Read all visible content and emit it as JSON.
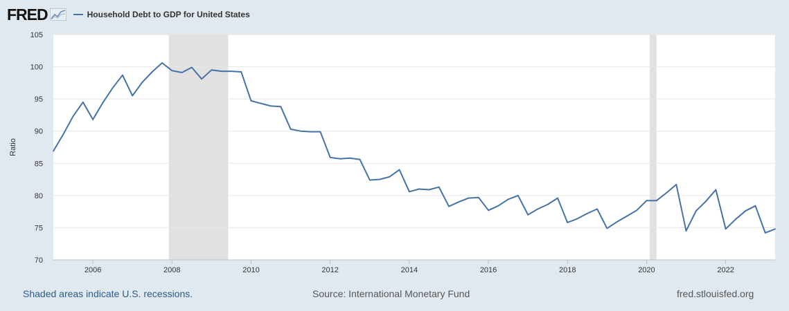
{
  "header": {
    "logo_text": "FRED",
    "logo_icon": "chart-line-icon",
    "legend_label": "Household Debt to GDP for United States",
    "series_color": "#4572a7"
  },
  "footer": {
    "recession_note": "Shaded areas indicate U.S. recessions.",
    "source": "Source: International Monetary Fund",
    "site": "fred.stlouisfed.org"
  },
  "chart_data": {
    "type": "line",
    "title": "",
    "xlabel": "",
    "ylabel": "Ratio",
    "xlim": [
      2005.0,
      2023.25
    ],
    "ylim": [
      70,
      105
    ],
    "y_ticks": [
      70,
      75,
      80,
      85,
      90,
      95,
      100,
      105
    ],
    "x_ticks": [
      2006,
      2008,
      2010,
      2012,
      2014,
      2016,
      2018,
      2020,
      2022
    ],
    "grid": "horizontal",
    "recessions": [
      [
        2007.92,
        2009.42
      ],
      [
        2020.08,
        2020.25
      ]
    ],
    "series": [
      {
        "name": "Household Debt to GDP for United States",
        "color": "#4572a7",
        "x": [
          2005.0,
          2005.25,
          2005.5,
          2005.75,
          2006.0,
          2006.25,
          2006.5,
          2006.75,
          2007.0,
          2007.25,
          2007.5,
          2007.75,
          2008.0,
          2008.25,
          2008.5,
          2008.75,
          2009.0,
          2009.25,
          2009.5,
          2009.75,
          2010.0,
          2010.25,
          2010.5,
          2010.75,
          2011.0,
          2011.25,
          2011.5,
          2011.75,
          2012.0,
          2012.25,
          2012.5,
          2012.75,
          2013.0,
          2013.25,
          2013.5,
          2013.75,
          2014.0,
          2014.25,
          2014.5,
          2014.75,
          2015.0,
          2015.25,
          2015.5,
          2015.75,
          2016.0,
          2016.25,
          2016.5,
          2016.75,
          2017.0,
          2017.25,
          2017.5,
          2017.75,
          2018.0,
          2018.25,
          2018.5,
          2018.75,
          2019.0,
          2019.25,
          2019.5,
          2019.75,
          2020.0,
          2020.25,
          2020.5,
          2020.75,
          2021.0,
          2021.25,
          2021.5,
          2021.75,
          2022.0,
          2022.25,
          2022.5,
          2022.75,
          2023.0,
          2023.25
        ],
        "values": [
          86.9,
          89.5,
          92.3,
          94.5,
          91.8,
          94.4,
          96.7,
          98.7,
          95.5,
          97.6,
          99.2,
          100.6,
          99.4,
          99.1,
          99.9,
          98.1,
          99.5,
          99.3,
          99.3,
          99.2,
          94.7,
          94.3,
          93.9,
          93.8,
          90.3,
          90.0,
          89.9,
          89.9,
          85.9,
          85.7,
          85.8,
          85.6,
          82.4,
          82.5,
          82.9,
          84.0,
          80.6,
          81.0,
          80.9,
          81.3,
          78.3,
          79.0,
          79.6,
          79.7,
          77.7,
          78.4,
          79.4,
          80.0,
          77.0,
          77.9,
          78.6,
          79.6,
          75.8,
          76.4,
          77.2,
          77.9,
          74.9,
          75.9,
          76.8,
          77.7,
          79.2,
          79.2,
          80.4,
          81.7,
          74.5,
          77.6,
          79.1,
          80.9,
          74.8,
          76.3,
          77.6,
          78.4,
          74.2,
          74.8
        ]
      }
    ]
  }
}
